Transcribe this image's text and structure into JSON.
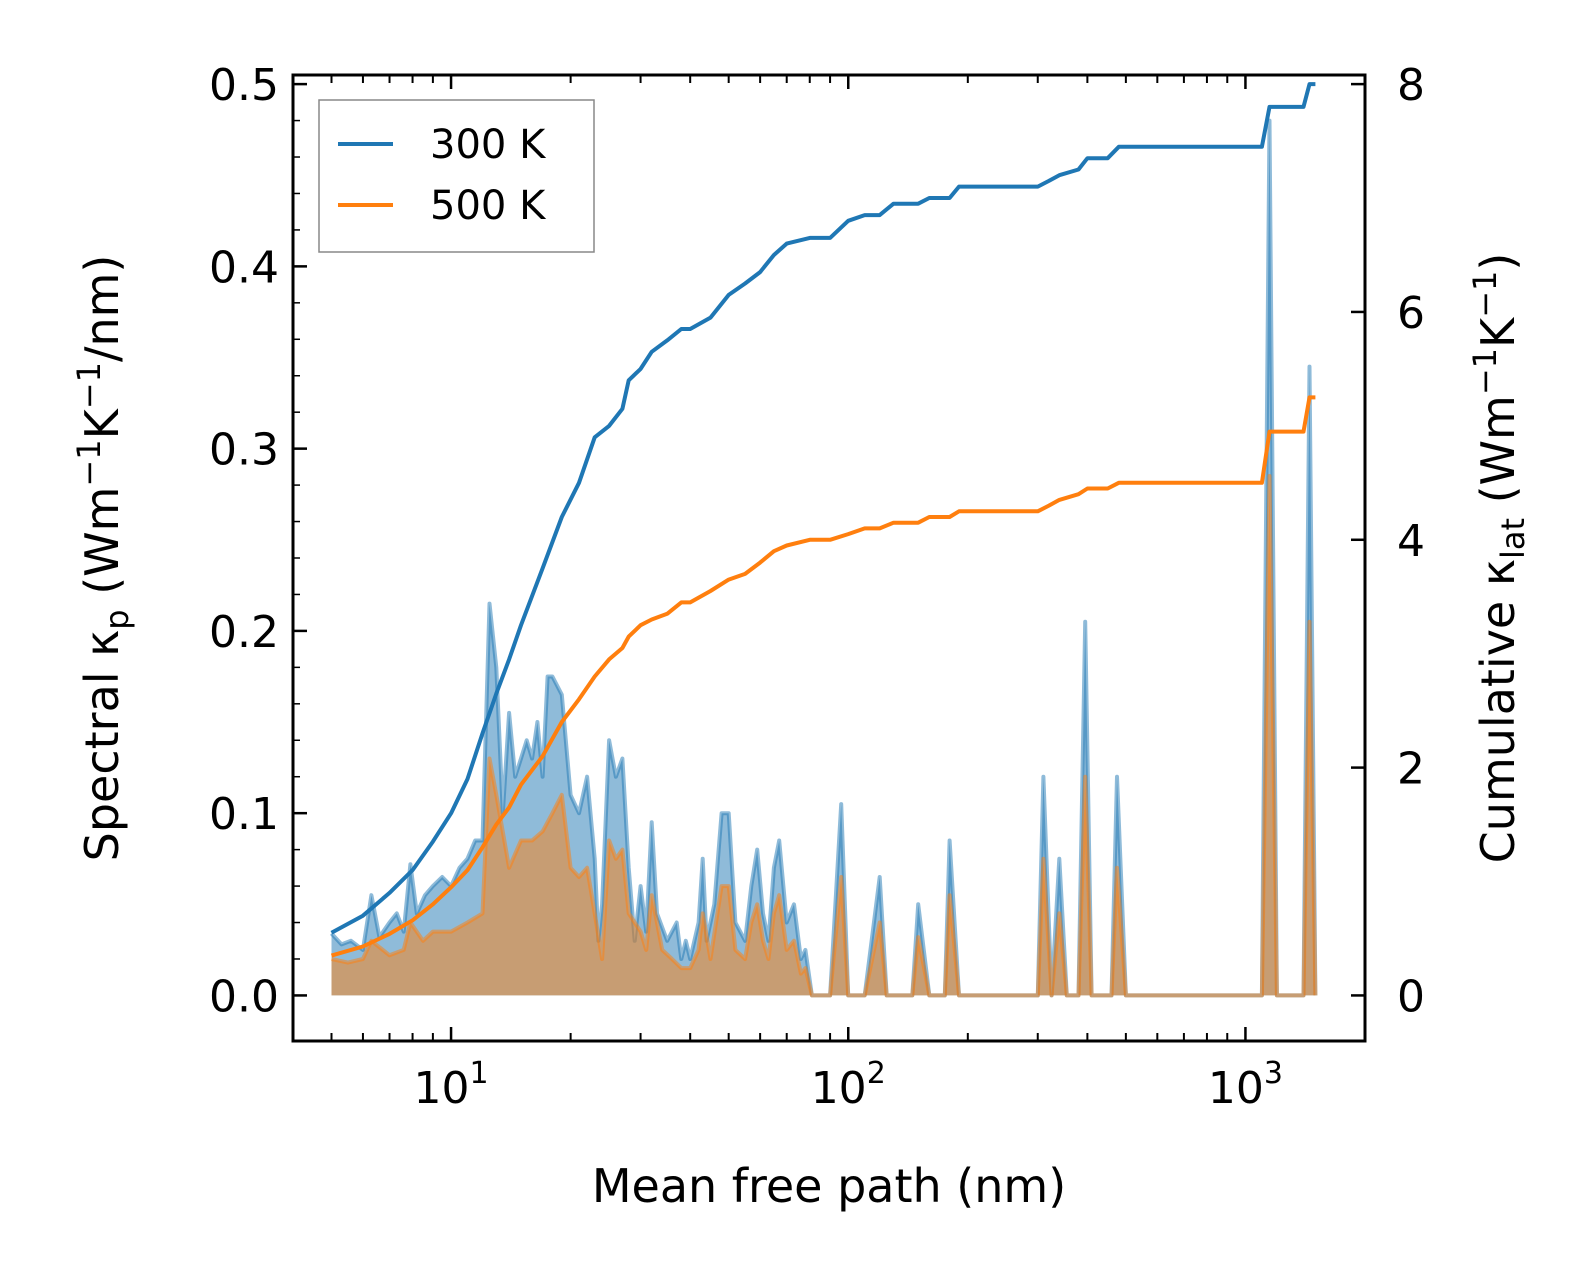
{
  "chart_data": {
    "type": "line",
    "x_scale": "log",
    "xlabel": "Mean free path (nm)",
    "ylabel_left": {
      "main": "Spectral κ",
      "sub": "p",
      "unit_prefix": " (Wm",
      "sup1": "−1",
      "mid": "K",
      "sup2": "−1",
      "unit_suffix": "/nm)"
    },
    "ylabel_right": {
      "main": "Cumulative κ",
      "sub": "lat",
      "unit_prefix": " (Wm",
      "sup1": "−1",
      "mid": "K",
      "sup2": "−1",
      "unit_suffix": ")"
    },
    "xlim": [
      4,
      2000
    ],
    "ylim_left": [
      -0.025,
      0.505
    ],
    "ylim_right": [
      -0.4,
      8.08
    ],
    "x_ticks": [
      {
        "value": 10,
        "base": "10",
        "exp": "1"
      },
      {
        "value": 100,
        "base": "10",
        "exp": "2"
      },
      {
        "value": 1000,
        "base": "10",
        "exp": "3"
      }
    ],
    "y_ticks_left": [
      {
        "value": 0.0,
        "label": "0.0"
      },
      {
        "value": 0.1,
        "label": "0.1"
      },
      {
        "value": 0.2,
        "label": "0.2"
      },
      {
        "value": 0.3,
        "label": "0.3"
      },
      {
        "value": 0.4,
        "label": "0.4"
      },
      {
        "value": 0.5,
        "label": "0.5"
      }
    ],
    "y_ticks_right": [
      {
        "value": 0,
        "label": "0"
      },
      {
        "value": 2,
        "label": "2"
      },
      {
        "value": 4,
        "label": "4"
      },
      {
        "value": 6,
        "label": "6"
      },
      {
        "value": 8,
        "label": "8"
      }
    ],
    "legend": {
      "position": "top-left",
      "entries": [
        {
          "label": "300 K",
          "color": "#1f77b4"
        },
        {
          "label": "500 K",
          "color": "#ff7f0e"
        }
      ]
    },
    "series": [
      {
        "name": "300 K",
        "color": "#1f77b4",
        "axis": "right",
        "kind": "cumulative",
        "points": [
          [
            5,
            0.55
          ],
          [
            6,
            0.7
          ],
          [
            7,
            0.9
          ],
          [
            8,
            1.1
          ],
          [
            9,
            1.35
          ],
          [
            10,
            1.6
          ],
          [
            11,
            1.9
          ],
          [
            12,
            2.3
          ],
          [
            13,
            2.65
          ],
          [
            14,
            2.95
          ],
          [
            15,
            3.25
          ],
          [
            17,
            3.75
          ],
          [
            19,
            4.2
          ],
          [
            21,
            4.5
          ],
          [
            23,
            4.9
          ],
          [
            25,
            5.0
          ],
          [
            27,
            5.15
          ],
          [
            28,
            5.4
          ],
          [
            30,
            5.5
          ],
          [
            32,
            5.65
          ],
          [
            35,
            5.75
          ],
          [
            38,
            5.85
          ],
          [
            40,
            5.85
          ],
          [
            45,
            5.95
          ],
          [
            50,
            6.15
          ],
          [
            55,
            6.25
          ],
          [
            60,
            6.35
          ],
          [
            65,
            6.5
          ],
          [
            70,
            6.6
          ],
          [
            80,
            6.65
          ],
          [
            90,
            6.65
          ],
          [
            100,
            6.8
          ],
          [
            110,
            6.85
          ],
          [
            120,
            6.85
          ],
          [
            130,
            6.95
          ],
          [
            150,
            6.95
          ],
          [
            160,
            7.0
          ],
          [
            180,
            7.0
          ],
          [
            190,
            7.1
          ],
          [
            300,
            7.1
          ],
          [
            320,
            7.15
          ],
          [
            340,
            7.2
          ],
          [
            380,
            7.25
          ],
          [
            400,
            7.35
          ],
          [
            450,
            7.35
          ],
          [
            480,
            7.45
          ],
          [
            1100,
            7.45
          ],
          [
            1150,
            7.8
          ],
          [
            1400,
            7.8
          ],
          [
            1450,
            8.0
          ],
          [
            1500,
            8.0
          ]
        ]
      },
      {
        "name": "500 K",
        "color": "#ff7f0e",
        "axis": "right",
        "kind": "cumulative",
        "points": [
          [
            5,
            0.35
          ],
          [
            6,
            0.43
          ],
          [
            7,
            0.54
          ],
          [
            8,
            0.66
          ],
          [
            9,
            0.8
          ],
          [
            10,
            0.95
          ],
          [
            11,
            1.1
          ],
          [
            12,
            1.3
          ],
          [
            13,
            1.5
          ],
          [
            14,
            1.65
          ],
          [
            15,
            1.85
          ],
          [
            17,
            2.1
          ],
          [
            19,
            2.4
          ],
          [
            21,
            2.6
          ],
          [
            23,
            2.8
          ],
          [
            25,
            2.95
          ],
          [
            27,
            3.05
          ],
          [
            28,
            3.15
          ],
          [
            30,
            3.25
          ],
          [
            32,
            3.3
          ],
          [
            35,
            3.35
          ],
          [
            38,
            3.45
          ],
          [
            40,
            3.45
          ],
          [
            45,
            3.55
          ],
          [
            50,
            3.65
          ],
          [
            55,
            3.7
          ],
          [
            60,
            3.8
          ],
          [
            65,
            3.9
          ],
          [
            70,
            3.95
          ],
          [
            80,
            4.0
          ],
          [
            90,
            4.0
          ],
          [
            100,
            4.05
          ],
          [
            110,
            4.1
          ],
          [
            120,
            4.1
          ],
          [
            130,
            4.15
          ],
          [
            150,
            4.15
          ],
          [
            160,
            4.2
          ],
          [
            180,
            4.2
          ],
          [
            190,
            4.25
          ],
          [
            300,
            4.25
          ],
          [
            320,
            4.3
          ],
          [
            340,
            4.35
          ],
          [
            380,
            4.4
          ],
          [
            400,
            4.45
          ],
          [
            450,
            4.45
          ],
          [
            480,
            4.5
          ],
          [
            1100,
            4.5
          ],
          [
            1150,
            4.95
          ],
          [
            1400,
            4.95
          ],
          [
            1450,
            5.25
          ],
          [
            1500,
            5.25
          ]
        ]
      },
      {
        "name": "300 K spectral",
        "color": "#1f77b4",
        "axis": "left",
        "kind": "spectral",
        "points": [
          [
            5,
            0.034
          ],
          [
            5.3,
            0.028
          ],
          [
            5.6,
            0.03
          ],
          [
            6,
            0.025
          ],
          [
            6.3,
            0.055
          ],
          [
            6.6,
            0.032
          ],
          [
            7,
            0.04
          ],
          [
            7.3,
            0.045
          ],
          [
            7.6,
            0.035
          ],
          [
            7.9,
            0.072
          ],
          [
            8.2,
            0.045
          ],
          [
            8.6,
            0.055
          ],
          [
            9,
            0.06
          ],
          [
            9.5,
            0.065
          ],
          [
            10,
            0.06
          ],
          [
            10.5,
            0.07
          ],
          [
            11,
            0.075
          ],
          [
            11.5,
            0.085
          ],
          [
            12,
            0.085
          ],
          [
            12.5,
            0.215
          ],
          [
            13,
            0.18
          ],
          [
            13.5,
            0.1
          ],
          [
            14,
            0.155
          ],
          [
            14.5,
            0.12
          ],
          [
            15,
            0.13
          ],
          [
            15.5,
            0.14
          ],
          [
            16,
            0.13
          ],
          [
            16.5,
            0.15
          ],
          [
            17,
            0.12
          ],
          [
            17.5,
            0.175
          ],
          [
            18,
            0.175
          ],
          [
            19,
            0.165
          ],
          [
            20,
            0.11
          ],
          [
            21,
            0.1
          ],
          [
            22,
            0.12
          ],
          [
            23,
            0.075
          ],
          [
            23.5,
            0.03
          ],
          [
            24,
            0.05
          ],
          [
            25,
            0.14
          ],
          [
            26,
            0.12
          ],
          [
            27,
            0.13
          ],
          [
            28,
            0.07
          ],
          [
            29,
            0.03
          ],
          [
            30,
            0.06
          ],
          [
            31,
            0.035
          ],
          [
            32,
            0.095
          ],
          [
            33,
            0.045
          ],
          [
            35,
            0.03
          ],
          [
            37,
            0.04
          ],
          [
            38,
            0.02
          ],
          [
            39,
            0.03
          ],
          [
            40,
            0.02
          ],
          [
            42,
            0.04
          ],
          [
            43,
            0.075
          ],
          [
            44,
            0.03
          ],
          [
            46,
            0.05
          ],
          [
            48,
            0.1
          ],
          [
            50,
            0.1
          ],
          [
            52,
            0.04
          ],
          [
            55,
            0.03
          ],
          [
            57,
            0.06
          ],
          [
            59,
            0.08
          ],
          [
            61,
            0.045
          ],
          [
            63,
            0.03
          ],
          [
            65,
            0.07
          ],
          [
            67,
            0.085
          ],
          [
            70,
            0.04
          ],
          [
            73,
            0.05
          ],
          [
            76,
            0.02
          ],
          [
            78,
            0.025
          ],
          [
            81,
            0.0
          ],
          [
            90,
            0.0
          ],
          [
            96,
            0.105
          ],
          [
            100,
            0.0
          ],
          [
            110,
            0.0
          ],
          [
            120,
            0.065
          ],
          [
            125,
            0.0
          ],
          [
            145,
            0.0
          ],
          [
            150,
            0.05
          ],
          [
            160,
            0.0
          ],
          [
            175,
            0.0
          ],
          [
            180,
            0.085
          ],
          [
            190,
            0.0
          ],
          [
            300,
            0.0
          ],
          [
            310,
            0.12
          ],
          [
            325,
            0.0
          ],
          [
            340,
            0.075
          ],
          [
            355,
            0.0
          ],
          [
            380,
            0.0
          ],
          [
            395,
            0.205
          ],
          [
            410,
            0.0
          ],
          [
            460,
            0.0
          ],
          [
            475,
            0.12
          ],
          [
            500,
            0.0
          ],
          [
            1100,
            0.0
          ],
          [
            1150,
            0.48
          ],
          [
            1200,
            0.0
          ],
          [
            1400,
            0.0
          ],
          [
            1450,
            0.345
          ],
          [
            1500,
            0.0
          ]
        ]
      },
      {
        "name": "500 K spectral",
        "color": "#ff7f0e",
        "axis": "left",
        "kind": "spectral",
        "points": [
          [
            5,
            0.02
          ],
          [
            5.5,
            0.018
          ],
          [
            6,
            0.02
          ],
          [
            6.3,
            0.03
          ],
          [
            7,
            0.022
          ],
          [
            7.6,
            0.025
          ],
          [
            7.9,
            0.04
          ],
          [
            8.5,
            0.03
          ],
          [
            9,
            0.035
          ],
          [
            10,
            0.035
          ],
          [
            11,
            0.04
          ],
          [
            12,
            0.045
          ],
          [
            12.5,
            0.13
          ],
          [
            13,
            0.11
          ],
          [
            14,
            0.07
          ],
          [
            15,
            0.085
          ],
          [
            16,
            0.085
          ],
          [
            17,
            0.09
          ],
          [
            18,
            0.1
          ],
          [
            19,
            0.11
          ],
          [
            20,
            0.07
          ],
          [
            21,
            0.065
          ],
          [
            22,
            0.07
          ],
          [
            23,
            0.045
          ],
          [
            24,
            0.02
          ],
          [
            25,
            0.085
          ],
          [
            26,
            0.075
          ],
          [
            27,
            0.08
          ],
          [
            28,
            0.045
          ],
          [
            30,
            0.035
          ],
          [
            31,
            0.025
          ],
          [
            32,
            0.055
          ],
          [
            34,
            0.025
          ],
          [
            36,
            0.02
          ],
          [
            38,
            0.015
          ],
          [
            40,
            0.015
          ],
          [
            42,
            0.025
          ],
          [
            43,
            0.045
          ],
          [
            45,
            0.02
          ],
          [
            48,
            0.06
          ],
          [
            50,
            0.06
          ],
          [
            52,
            0.025
          ],
          [
            55,
            0.02
          ],
          [
            57,
            0.04
          ],
          [
            59,
            0.05
          ],
          [
            61,
            0.03
          ],
          [
            63,
            0.02
          ],
          [
            65,
            0.045
          ],
          [
            67,
            0.055
          ],
          [
            70,
            0.025
          ],
          [
            73,
            0.03
          ],
          [
            76,
            0.012
          ],
          [
            78,
            0.015
          ],
          [
            81,
            0.0
          ],
          [
            90,
            0.0
          ],
          [
            96,
            0.065
          ],
          [
            100,
            0.0
          ],
          [
            110,
            0.0
          ],
          [
            120,
            0.04
          ],
          [
            125,
            0.0
          ],
          [
            145,
            0.0
          ],
          [
            150,
            0.032
          ],
          [
            160,
            0.0
          ],
          [
            175,
            0.0
          ],
          [
            180,
            0.055
          ],
          [
            190,
            0.0
          ],
          [
            300,
            0.0
          ],
          [
            310,
            0.075
          ],
          [
            325,
            0.0
          ],
          [
            340,
            0.045
          ],
          [
            355,
            0.0
          ],
          [
            380,
            0.0
          ],
          [
            395,
            0.12
          ],
          [
            410,
            0.0
          ],
          [
            460,
            0.0
          ],
          [
            475,
            0.07
          ],
          [
            500,
            0.0
          ],
          [
            1100,
            0.0
          ],
          [
            1150,
            0.285
          ],
          [
            1200,
            0.0
          ],
          [
            1400,
            0.0
          ],
          [
            1450,
            0.205
          ],
          [
            1500,
            0.0
          ]
        ]
      }
    ]
  }
}
